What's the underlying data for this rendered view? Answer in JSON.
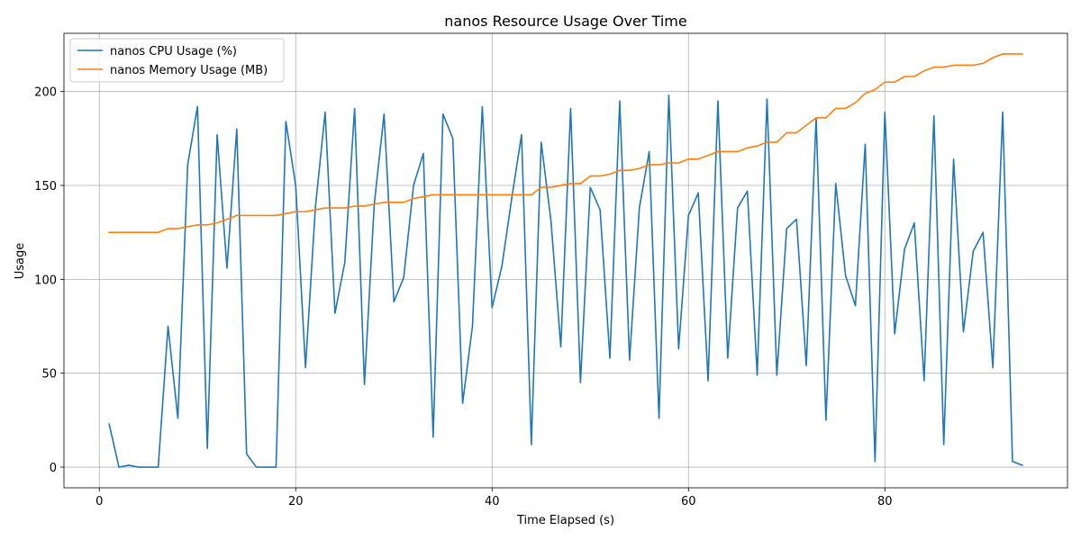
{
  "chart_data": {
    "type": "line",
    "title": "nanos Resource Usage Over Time",
    "xlabel": "Time Elapsed (s)",
    "ylabel": "Usage",
    "xlim": [
      -3.6,
      98.6
    ],
    "ylim": [
      -11,
      231
    ],
    "xticks": [
      0,
      20,
      40,
      60,
      80
    ],
    "yticks": [
      0,
      50,
      100,
      150,
      200
    ],
    "grid": true,
    "legend": "top-left",
    "x": [
      1,
      2,
      3,
      4,
      5,
      6,
      7,
      8,
      9,
      10,
      11,
      12,
      13,
      14,
      15,
      16,
      17,
      18,
      19,
      20,
      21,
      22,
      23,
      24,
      25,
      26,
      27,
      28,
      29,
      30,
      31,
      32,
      33,
      34,
      35,
      36,
      37,
      38,
      39,
      40,
      41,
      42,
      43,
      44,
      45,
      46,
      47,
      48,
      49,
      50,
      51,
      52,
      53,
      54,
      55,
      56,
      57,
      58,
      59,
      60,
      61,
      62,
      63,
      64,
      65,
      66,
      67,
      68,
      69,
      70,
      71,
      72,
      73,
      74,
      75,
      76,
      77,
      78,
      79,
      80,
      81,
      82,
      83,
      84,
      85,
      86,
      87,
      88,
      89,
      90,
      91,
      92,
      93,
      94
    ],
    "series": [
      {
        "name": "nanos CPU Usage (%)",
        "color": "#1f77b4",
        "values": [
          23,
          0,
          1,
          0,
          0,
          0,
          75,
          26,
          161,
          192,
          10,
          177,
          106,
          180,
          7,
          0,
          0,
          0,
          184,
          150,
          53,
          138,
          189,
          82,
          109,
          191,
          44,
          140,
          188,
          88,
          101,
          150,
          167,
          16,
          188,
          175,
          34,
          75,
          192,
          85,
          107,
          143,
          177,
          12,
          173,
          131,
          64,
          191,
          45,
          149,
          137,
          58,
          195,
          57,
          138,
          168,
          26,
          198,
          63,
          134,
          146,
          46,
          195,
          58,
          138,
          147,
          49,
          196,
          49,
          127,
          132,
          54,
          186,
          25,
          151,
          102,
          86,
          172,
          3,
          189,
          71,
          116,
          130,
          46,
          187,
          12,
          164,
          72,
          115,
          125,
          53,
          189,
          3,
          1
        ]
      },
      {
        "name": "nanos Memory Usage (MB)",
        "color": "#ff7f0e",
        "values": [
          125,
          125,
          125,
          125,
          125,
          125,
          127,
          127,
          128,
          129,
          129,
          130,
          132,
          134,
          134,
          134,
          134,
          134,
          135,
          136,
          136,
          137,
          138,
          138,
          138,
          139,
          139,
          140,
          141,
          141,
          141,
          143,
          144,
          145,
          145,
          145,
          145,
          145,
          145,
          145,
          145,
          145,
          145,
          145,
          149,
          149,
          150,
          151,
          151,
          155,
          155,
          156,
          158,
          158,
          159,
          161,
          161,
          162,
          162,
          164,
          164,
          166,
          168,
          168,
          168,
          170,
          171,
          173,
          173,
          178,
          178,
          182,
          186,
          186,
          191,
          191,
          194,
          199,
          201,
          205,
          205,
          208,
          208,
          211,
          213,
          213,
          214,
          214,
          214,
          215,
          218,
          220,
          220,
          220
        ]
      }
    ]
  }
}
